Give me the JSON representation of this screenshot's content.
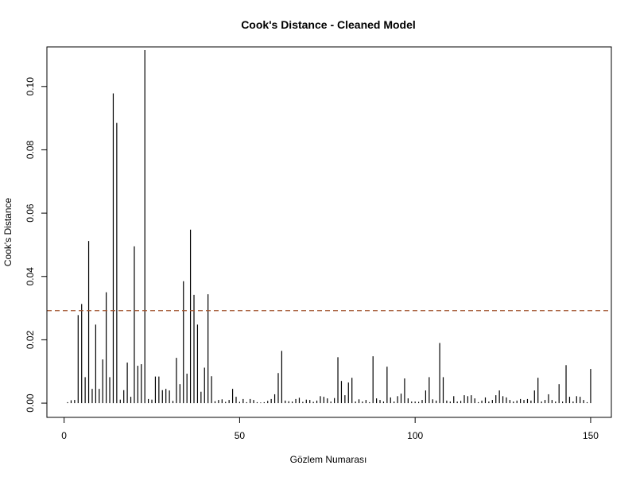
{
  "chart_data": {
    "type": "bar",
    "title": "Cook's Distance - Cleaned Model",
    "xlabel": "Gözlem Numarası",
    "ylabel": "Cook's Distance",
    "xlim": [
      -4.9,
      155.9
    ],
    "ylim": [
      -0.0045,
      0.1125
    ],
    "xticks": [
      0,
      50,
      100,
      150
    ],
    "yticks": [
      0.0,
      0.02,
      0.04,
      0.06,
      0.08,
      0.1
    ],
    "xtick_labels": [
      "0",
      "50",
      "100",
      "150"
    ],
    "ytick_labels": [
      "0.00",
      "0.02",
      "0.04",
      "0.06",
      "0.08",
      "0.10"
    ],
    "threshold": 0.0292,
    "threshold_color": "#a0522d",
    "bar_color": "#000000",
    "grid": false,
    "x": [
      1,
      2,
      3,
      4,
      5,
      6,
      7,
      8,
      9,
      10,
      11,
      12,
      13,
      14,
      15,
      16,
      17,
      18,
      19,
      20,
      21,
      22,
      23,
      24,
      25,
      26,
      27,
      28,
      29,
      30,
      31,
      32,
      33,
      34,
      35,
      36,
      37,
      38,
      39,
      40,
      41,
      42,
      43,
      44,
      45,
      46,
      47,
      48,
      49,
      50,
      51,
      52,
      53,
      54,
      55,
      56,
      57,
      58,
      59,
      60,
      61,
      62,
      63,
      64,
      65,
      66,
      67,
      68,
      69,
      70,
      71,
      72,
      73,
      74,
      75,
      76,
      77,
      78,
      79,
      80,
      81,
      82,
      83,
      84,
      85,
      86,
      87,
      88,
      89,
      90,
      91,
      92,
      93,
      94,
      95,
      96,
      97,
      98,
      99,
      100,
      101,
      102,
      103,
      104,
      105,
      106,
      107,
      108,
      109,
      110,
      111,
      112,
      113,
      114,
      115,
      116,
      117,
      118,
      119,
      120,
      121,
      122,
      123,
      124,
      125,
      126,
      127,
      128,
      129,
      130,
      131,
      132,
      133,
      134,
      135,
      136,
      137,
      138,
      139,
      140,
      141,
      142,
      143,
      144,
      145,
      146,
      147,
      148,
      149,
      150
    ],
    "values": [
      0.0003,
      0.0009,
      0.001,
      0.0278,
      0.0313,
      0.0082,
      0.0512,
      0.0045,
      0.0248,
      0.0045,
      0.0138,
      0.035,
      0.0082,
      0.0978,
      0.0885,
      0.0011,
      0.0041,
      0.0128,
      0.002,
      0.0495,
      0.0118,
      0.0123,
      0.1115,
      0.0013,
      0.0011,
      0.0084,
      0.0084,
      0.0041,
      0.0045,
      0.004,
      0.0007,
      0.0143,
      0.006,
      0.0385,
      0.0093,
      0.0548,
      0.0342,
      0.0248,
      0.0036,
      0.0112,
      0.0344,
      0.0085,
      0.0006,
      0.001,
      0.0012,
      0.0004,
      0.001,
      0.0045,
      0.002,
      0.0004,
      0.0013,
      0.0003,
      0.0013,
      0.001,
      0.0003,
      0.0002,
      0.0003,
      0.0007,
      0.0013,
      0.0028,
      0.0095,
      0.0165,
      0.0008,
      0.0006,
      0.0005,
      0.0013,
      0.0017,
      0.0004,
      0.0011,
      0.001,
      0.0004,
      0.0008,
      0.0022,
      0.002,
      0.0015,
      0.0005,
      0.0016,
      0.0145,
      0.007,
      0.0025,
      0.0065,
      0.008,
      0.0005,
      0.0012,
      0.0005,
      0.001,
      0.0003,
      0.0148,
      0.0015,
      0.001,
      0.0005,
      0.0115,
      0.0018,
      0.0005,
      0.0022,
      0.003,
      0.0078,
      0.0015,
      0.0005,
      0.0005,
      0.0004,
      0.001,
      0.004,
      0.0082,
      0.0012,
      0.0008,
      0.019,
      0.0082,
      0.0008,
      0.0005,
      0.0022,
      0.0005,
      0.0007,
      0.0025,
      0.0022,
      0.0025,
      0.0015,
      0.0003,
      0.0008,
      0.0018,
      0.0005,
      0.001,
      0.0025,
      0.004,
      0.0022,
      0.0018,
      0.001,
      0.0005,
      0.0008,
      0.0013,
      0.001,
      0.0013,
      0.0008,
      0.004,
      0.008,
      0.0005,
      0.001,
      0.0028,
      0.001,
      0.0005,
      0.006,
      0.0005,
      0.012,
      0.002,
      0.0005,
      0.0022,
      0.002,
      0.001,
      0.0003,
      0.0108
    ]
  }
}
